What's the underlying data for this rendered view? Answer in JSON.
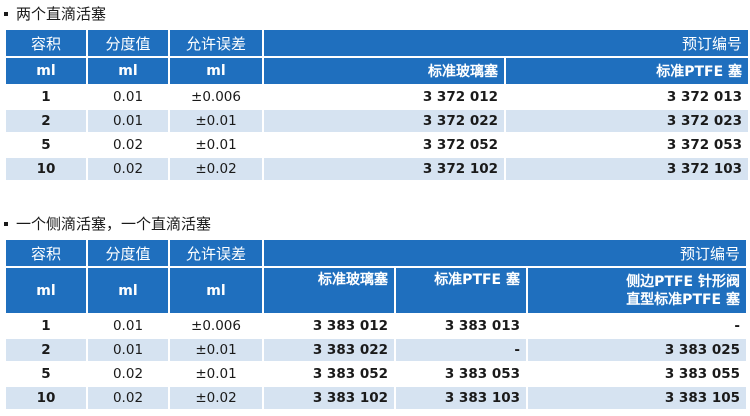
{
  "section1": {
    "title": "两个直滴活塞",
    "headers": {
      "volume": "容积",
      "division": "分度值",
      "tolerance": "允许误差",
      "order_no": "预订编号"
    },
    "units": {
      "volume": "ml",
      "division": "ml",
      "tolerance": "ml"
    },
    "columns": [
      "标准玻璃塞",
      "标准PTFE 塞"
    ],
    "rows": [
      {
        "volume": "1",
        "division": "0.01",
        "tolerance": "±0.006",
        "codes": [
          "3 372 012",
          "3 372 013"
        ]
      },
      {
        "volume": "2",
        "division": "0.01",
        "tolerance": "±0.01",
        "codes": [
          "3 372 022",
          "3 372 023"
        ]
      },
      {
        "volume": "5",
        "division": "0.02",
        "tolerance": "±0.01",
        "codes": [
          "3 372 052",
          "3 372 053"
        ]
      },
      {
        "volume": "10",
        "division": "0.02",
        "tolerance": "±0.02",
        "codes": [
          "3 372 102",
          "3 372 103"
        ]
      }
    ]
  },
  "section2": {
    "title": "一个侧滴活塞，一个直滴活塞",
    "headers": {
      "volume": "容积",
      "division": "分度值",
      "tolerance": "允许误差",
      "order_no": "预订编号"
    },
    "units": {
      "volume": "ml",
      "division": "ml",
      "tolerance": "ml"
    },
    "columns": [
      "标准玻璃塞",
      "标准PTFE 塞",
      "侧边PTFE 针形阀",
      "直型标准PTFE 塞"
    ],
    "rows": [
      {
        "volume": "1",
        "division": "0.01",
        "tolerance": "±0.006",
        "codes": [
          "3 383 012",
          "3 383 013",
          "-"
        ]
      },
      {
        "volume": "2",
        "division": "0.01",
        "tolerance": "±0.01",
        "codes": [
          "3 383 022",
          "-",
          "3 383 025"
        ]
      },
      {
        "volume": "5",
        "division": "0.02",
        "tolerance": "±0.01",
        "codes": [
          "3 383 052",
          "3 383 053",
          "3 383 055"
        ]
      },
      {
        "volume": "10",
        "division": "0.02",
        "tolerance": "±0.02",
        "codes": [
          "3 383 102",
          "3 383 103",
          "3 383 105"
        ]
      }
    ]
  },
  "colors": {
    "header_blue": "#1f6fbe",
    "row_stripe": "#d6e3f1"
  }
}
